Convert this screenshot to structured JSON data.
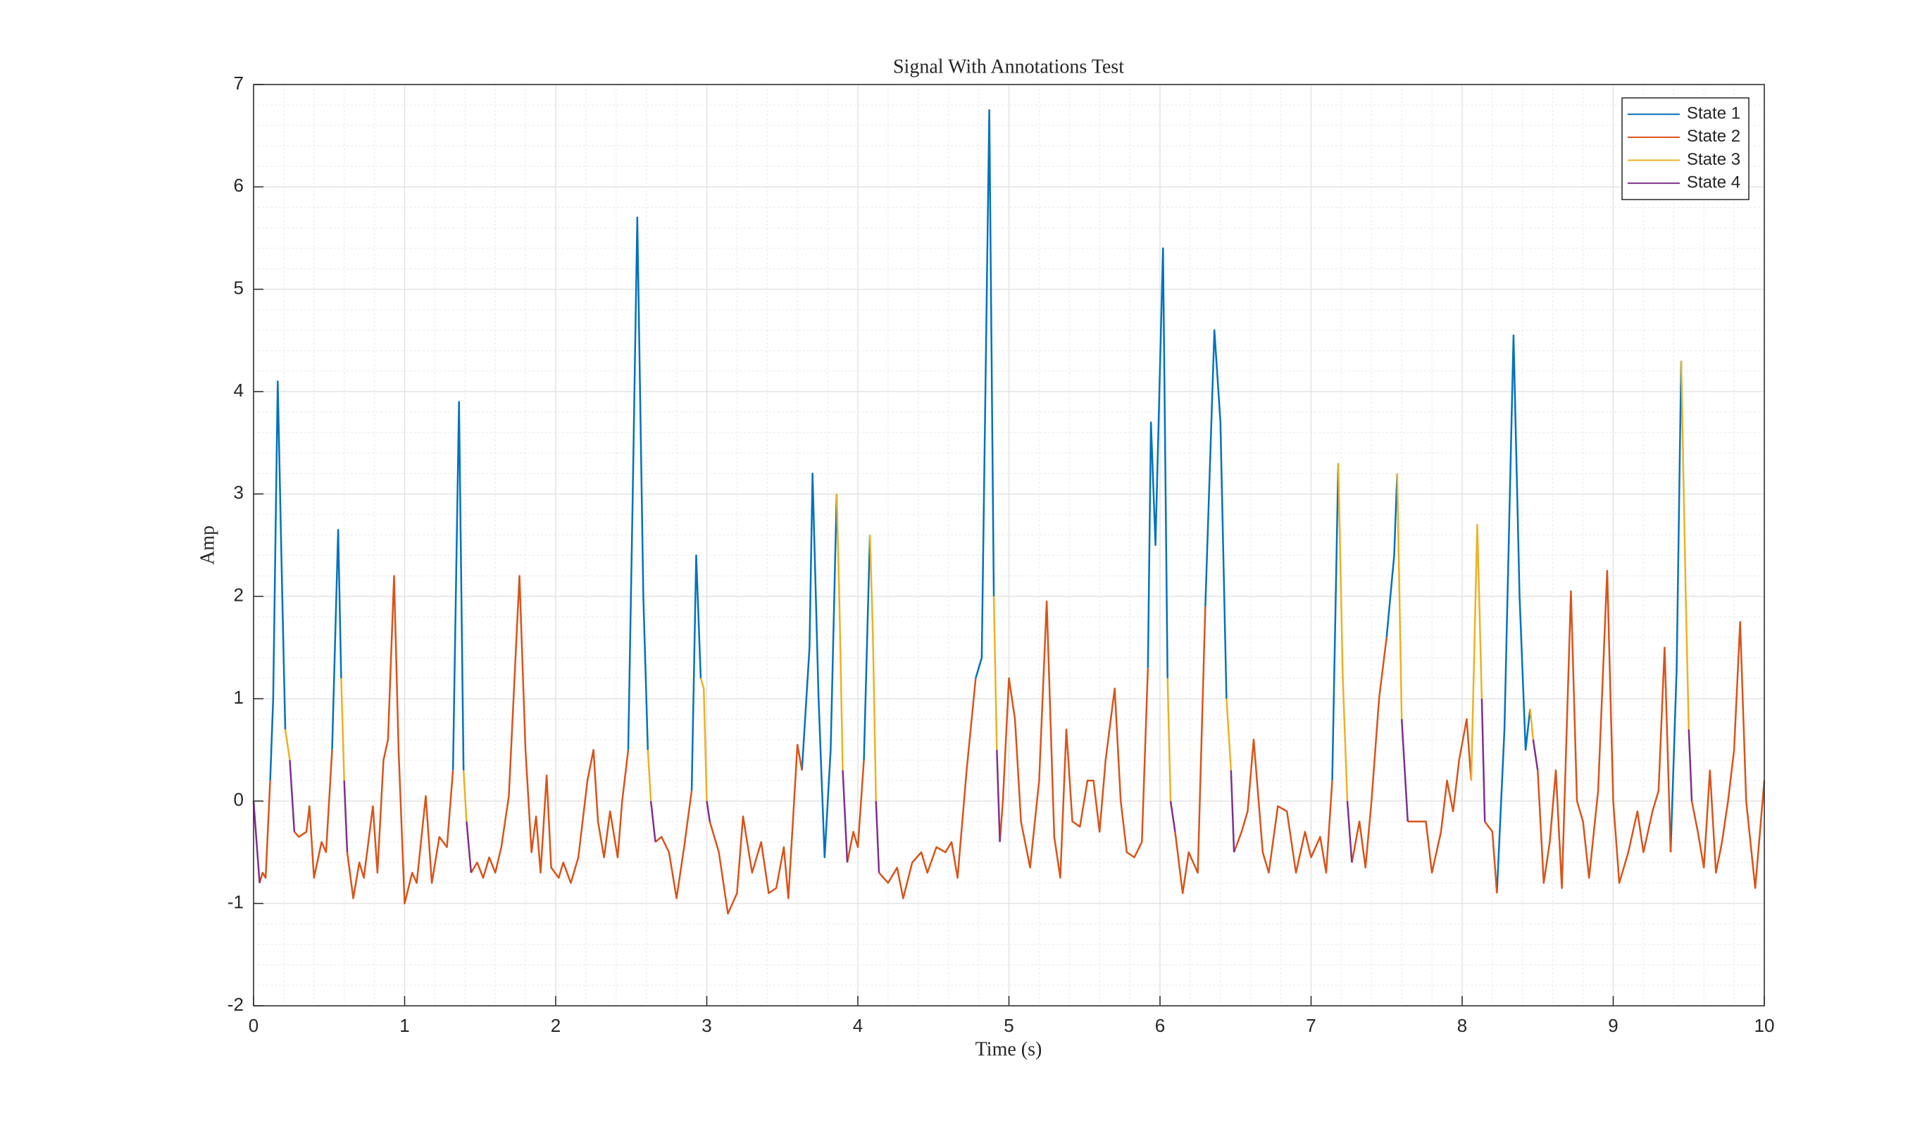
{
  "chart_data": {
    "type": "line",
    "title": "Signal With Annotations Test",
    "x_label": "Time (s)",
    "y_label": "Amp",
    "xlim": [
      0,
      10
    ],
    "ylim": [
      -2,
      7
    ],
    "xticks": [
      0,
      1,
      2,
      3,
      4,
      5,
      6,
      7,
      8,
      9,
      10
    ],
    "yticks": [
      -2,
      -1,
      0,
      1,
      2,
      3,
      4,
      5,
      6,
      7
    ],
    "grid": true,
    "minor_grid": true,
    "legend": "upper-right",
    "series": [
      {
        "name": "State 1",
        "color": "#0072bd",
        "x": [
          0.11,
          0.13,
          0.16,
          0.19,
          0.21,
          null,
          0.52,
          0.56,
          0.58,
          null,
          1.32,
          1.36,
          1.39,
          null,
          2.48,
          2.51,
          2.54,
          2.58,
          2.61,
          null,
          2.9,
          2.93,
          2.96,
          null,
          3.63,
          3.68,
          3.7,
          3.74,
          3.78,
          3.82,
          3.86,
          null,
          4.04,
          4.08,
          null,
          4.78,
          4.82,
          4.87,
          4.9,
          null,
          5.92,
          5.94,
          5.97,
          6.02,
          6.05,
          null,
          6.3,
          6.36,
          6.4,
          6.44,
          null,
          7.14,
          7.18,
          null,
          7.5,
          7.55,
          7.57,
          null,
          8.23,
          8.28,
          8.34,
          8.38,
          8.42,
          8.45,
          null,
          9.38,
          9.42,
          9.45
        ],
        "values": [
          0.2,
          1.0,
          4.1,
          2.0,
          0.7,
          null,
          0.5,
          2.65,
          1.2,
          null,
          0.3,
          3.9,
          0.3,
          null,
          0.5,
          3.0,
          5.7,
          2.0,
          0.5,
          null,
          0.1,
          2.4,
          1.2,
          null,
          0.3,
          1.5,
          3.2,
          1.0,
          -0.55,
          0.5,
          3.0,
          null,
          0.4,
          2.6,
          null,
          1.2,
          1.4,
          6.75,
          2.0,
          null,
          1.3,
          3.7,
          2.5,
          5.4,
          1.2,
          null,
          1.9,
          4.6,
          3.7,
          1.0,
          null,
          0.2,
          3.3,
          null,
          1.6,
          2.4,
          3.2,
          null,
          -0.9,
          0.7,
          4.55,
          2.0,
          0.5,
          0.9,
          null,
          -0.5,
          1.3,
          4.3
        ]
      },
      {
        "name": "State 2",
        "color": "#d95319",
        "x": [
          0.04,
          0.06,
          0.08,
          0.11,
          null,
          0.27,
          0.3,
          0.35,
          0.37,
          0.4,
          0.45,
          0.48,
          0.52,
          null,
          0.62,
          0.66,
          0.7,
          0.73,
          0.79,
          0.82,
          0.86,
          0.89,
          0.93,
          0.96,
          1.0,
          1.05,
          1.08,
          1.14,
          1.18,
          1.23,
          1.28,
          1.32,
          null,
          1.44,
          1.48,
          1.52,
          1.56,
          1.6,
          1.64,
          1.69,
          1.76,
          1.8,
          1.84,
          1.87,
          1.9,
          1.94,
          1.97,
          2.02,
          2.05,
          2.1,
          2.15,
          2.21,
          2.25,
          2.28,
          2.32,
          2.36,
          2.41,
          2.44,
          2.48,
          null,
          2.66,
          2.7,
          2.75,
          2.8,
          2.85,
          2.9,
          null,
          3.02,
          3.08,
          3.14,
          3.2,
          3.24,
          3.3,
          3.36,
          3.41,
          3.46,
          3.51,
          3.54,
          3.6,
          3.63,
          null,
          3.93,
          3.97,
          4.0,
          4.04,
          null,
          4.14,
          4.2,
          4.26,
          4.3,
          4.36,
          4.42,
          4.46,
          4.52,
          4.58,
          4.62,
          4.66,
          4.72,
          4.78,
          null,
          4.94,
          4.96,
          5.0,
          5.04,
          5.08,
          5.14,
          5.2,
          5.25,
          5.3,
          5.34,
          5.38,
          5.42,
          5.47,
          5.52,
          5.56,
          5.6,
          5.64,
          5.7,
          5.74,
          5.78,
          5.83,
          5.88,
          5.92,
          null,
          6.1,
          6.15,
          6.19,
          6.25,
          6.3,
          null,
          6.49,
          6.54,
          6.58,
          6.62,
          6.68,
          6.72,
          6.78,
          6.84,
          6.9,
          6.96,
          7.0,
          7.06,
          7.1,
          7.14,
          null,
          7.27,
          7.32,
          7.36,
          7.4,
          7.45,
          7.5,
          null,
          7.64,
          7.7,
          7.76,
          7.8,
          7.86,
          7.9,
          7.94,
          7.98,
          8.03,
          8.06,
          null,
          8.15,
          8.2,
          8.23,
          null,
          8.5,
          8.54,
          8.58,
          8.62,
          8.66,
          8.72,
          8.76,
          8.8,
          8.84,
          8.9,
          8.96,
          9.0,
          9.04,
          9.1,
          9.16,
          9.2,
          9.26,
          9.3,
          9.34,
          9.38,
          null,
          9.52,
          9.56,
          9.6,
          9.64,
          9.68,
          9.72,
          9.76,
          9.8,
          9.84,
          9.88,
          9.94,
          10.0
        ],
        "values": [
          -0.8,
          -0.7,
          -0.75,
          0.2,
          null,
          -0.3,
          -0.35,
          -0.3,
          -0.05,
          -0.75,
          -0.4,
          -0.5,
          0.5,
          null,
          -0.5,
          -0.95,
          -0.6,
          -0.75,
          -0.05,
          -0.7,
          0.4,
          0.6,
          2.2,
          0.5,
          -1.0,
          -0.7,
          -0.8,
          0.05,
          -0.8,
          -0.35,
          -0.45,
          0.3,
          null,
          -0.7,
          -0.6,
          -0.75,
          -0.55,
          -0.7,
          -0.45,
          0.05,
          2.2,
          0.5,
          -0.5,
          -0.15,
          -0.7,
          0.25,
          -0.65,
          -0.75,
          -0.6,
          -0.8,
          -0.55,
          0.2,
          0.5,
          -0.2,
          -0.55,
          -0.1,
          -0.55,
          0.0,
          0.5,
          null,
          -0.4,
          -0.35,
          -0.5,
          -0.95,
          -0.45,
          0.1,
          null,
          -0.2,
          -0.5,
          -1.1,
          -0.9,
          -0.15,
          -0.7,
          -0.4,
          -0.9,
          -0.85,
          -0.45,
          -0.95,
          0.55,
          0.3,
          null,
          -0.6,
          -0.3,
          -0.45,
          0.4,
          null,
          -0.7,
          -0.8,
          -0.65,
          -0.95,
          -0.6,
          -0.5,
          -0.7,
          -0.45,
          -0.5,
          -0.4,
          -0.75,
          0.3,
          1.2,
          null,
          -0.4,
          0.0,
          1.2,
          0.8,
          -0.2,
          -0.65,
          0.2,
          1.95,
          -0.35,
          -0.75,
          0.7,
          -0.2,
          -0.25,
          0.2,
          0.2,
          -0.3,
          0.4,
          1.1,
          0.0,
          -0.5,
          -0.55,
          -0.4,
          1.3,
          null,
          -0.3,
          -0.9,
          -0.5,
          -0.7,
          1.9,
          null,
          -0.5,
          -0.3,
          -0.1,
          0.6,
          -0.5,
          -0.7,
          -0.05,
          -0.1,
          -0.7,
          -0.3,
          -0.55,
          -0.35,
          -0.7,
          0.2,
          null,
          -0.6,
          -0.2,
          -0.65,
          0.0,
          1.0,
          1.6,
          null,
          -0.2,
          -0.2,
          -0.2,
          -0.7,
          -0.3,
          0.2,
          -0.1,
          0.4,
          0.8,
          0.2,
          null,
          -0.2,
          -0.3,
          -0.9,
          null,
          0.3,
          -0.8,
          -0.4,
          0.3,
          -0.85,
          2.05,
          0.0,
          -0.2,
          -0.75,
          0.1,
          2.25,
          0.0,
          -0.8,
          -0.5,
          -0.1,
          -0.5,
          -0.1,
          0.1,
          1.5,
          -0.5,
          null,
          0.0,
          -0.3,
          -0.65,
          0.3,
          -0.7,
          -0.4,
          0.0,
          0.5,
          1.75,
          0.0,
          -0.85,
          0.2
        ]
      },
      {
        "name": "State 3",
        "color": "#edb120",
        "x": [
          0.21,
          0.24,
          null,
          0.58,
          0.6,
          null,
          1.39,
          1.41,
          null,
          2.61,
          2.63,
          null,
          2.96,
          2.98,
          3.0,
          null,
          3.86,
          3.88,
          3.9,
          null,
          4.08,
          4.1,
          4.12,
          null,
          4.9,
          4.92,
          null,
          6.05,
          6.07,
          null,
          6.44,
          6.47,
          null,
          7.18,
          7.21,
          7.24,
          null,
          7.57,
          7.6,
          null,
          8.06,
          8.1,
          8.13,
          null,
          8.45,
          8.47,
          null,
          9.45,
          9.48,
          9.5
        ],
        "values": [
          0.7,
          0.4,
          null,
          1.2,
          0.2,
          null,
          0.3,
          -0.2,
          null,
          0.5,
          0.0,
          null,
          1.2,
          1.1,
          0.0,
          null,
          3.0,
          1.8,
          0.3,
          null,
          2.6,
          1.6,
          0.0,
          null,
          2.0,
          0.5,
          null,
          1.2,
          0.0,
          null,
          1.0,
          0.3,
          null,
          3.3,
          1.2,
          0.0,
          null,
          3.2,
          0.8,
          null,
          0.2,
          2.7,
          1.0,
          null,
          0.9,
          0.6,
          null,
          4.3,
          2.0,
          0.7
        ]
      },
      {
        "name": "State 4",
        "color": "#7e2f8e",
        "x": [
          0.0,
          0.04,
          null,
          0.24,
          0.27,
          null,
          0.6,
          0.62,
          null,
          1.41,
          1.44,
          null,
          2.63,
          2.66,
          null,
          3.0,
          3.02,
          null,
          3.9,
          3.93,
          null,
          4.12,
          4.14,
          null,
          4.92,
          4.94,
          null,
          6.07,
          6.1,
          null,
          6.47,
          6.49,
          null,
          7.24,
          7.27,
          null,
          7.6,
          7.64,
          null,
          8.13,
          8.15,
          null,
          8.47,
          8.5,
          null,
          9.5,
          9.52
        ],
        "values": [
          0.0,
          -0.8,
          null,
          0.4,
          -0.3,
          null,
          0.2,
          -0.5,
          null,
          -0.2,
          -0.7,
          null,
          0.0,
          -0.4,
          null,
          0.0,
          -0.2,
          null,
          0.3,
          -0.6,
          null,
          0.0,
          -0.7,
          null,
          0.5,
          -0.4,
          null,
          0.0,
          -0.3,
          null,
          0.3,
          -0.5,
          null,
          0.0,
          -0.6,
          null,
          0.8,
          -0.2,
          null,
          1.0,
          -0.2,
          null,
          0.6,
          0.3,
          null,
          0.7,
          0.0
        ]
      }
    ]
  }
}
